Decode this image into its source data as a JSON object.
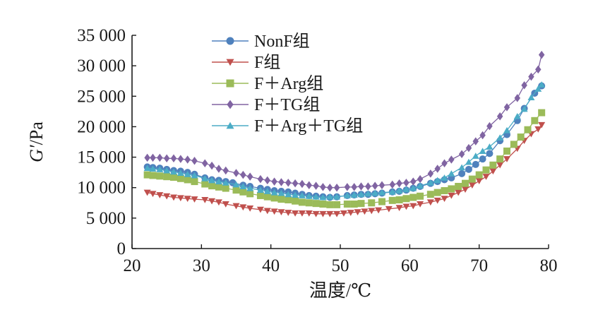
{
  "chart_data": {
    "type": "line",
    "xlabel": "温度/℃",
    "ylabel_italic": "G′",
    "ylabel_unit": "/Pa",
    "xlim": [
      20,
      80
    ],
    "ylim": [
      0,
      35000
    ],
    "x_ticks": [
      20,
      30,
      40,
      50,
      60,
      70,
      80
    ],
    "y_ticks": [
      0,
      5000,
      10000,
      15000,
      20000,
      25000,
      30000,
      35000
    ],
    "x_tick_labels": [
      "20",
      "30",
      "40",
      "50",
      "60",
      "70",
      "80"
    ],
    "y_tick_labels": [
      "0",
      "5 000",
      "10 000",
      "15 000",
      "20 000",
      "25 000",
      "30 000",
      "35 000"
    ],
    "grid": false,
    "legend_position": "top-center",
    "series": [
      {
        "name": "NonF组",
        "color": "#4f81bd",
        "marker": "circle",
        "points": [
          [
            22.2,
            13400
          ],
          [
            23,
            13300
          ],
          [
            24,
            13200
          ],
          [
            25,
            13000
          ],
          [
            26,
            12800
          ],
          [
            27,
            12700
          ],
          [
            28,
            12500
          ],
          [
            29,
            12200
          ],
          [
            30.5,
            11600
          ],
          [
            31.5,
            11300
          ],
          [
            32.5,
            11200
          ],
          [
            33.5,
            11000
          ],
          [
            34.5,
            10800
          ],
          [
            36,
            10400
          ],
          [
            37,
            10200
          ],
          [
            38.5,
            9900
          ],
          [
            39.5,
            9700
          ],
          [
            40.5,
            9500
          ],
          [
            41.5,
            9400
          ],
          [
            42.5,
            9300
          ],
          [
            43.5,
            9100
          ],
          [
            44.5,
            8900
          ],
          [
            45.5,
            8700
          ],
          [
            46.5,
            8600
          ],
          [
            47.5,
            8500
          ],
          [
            48.5,
            8400
          ],
          [
            49.5,
            8500
          ],
          [
            51,
            8700
          ],
          [
            52,
            8800
          ],
          [
            53,
            8900
          ],
          [
            54,
            8900
          ],
          [
            55,
            9000
          ],
          [
            56,
            9100
          ],
          [
            57.5,
            9300
          ],
          [
            58.5,
            9400
          ],
          [
            59.5,
            9600
          ],
          [
            60.5,
            9900
          ],
          [
            61.5,
            10200
          ],
          [
            63,
            10700
          ],
          [
            64,
            11000
          ],
          [
            65,
            11300
          ],
          [
            66,
            11600
          ],
          [
            67.5,
            12300
          ],
          [
            68.5,
            13000
          ],
          [
            69.5,
            13800
          ],
          [
            70.5,
            14700
          ],
          [
            71.5,
            15600
          ],
          [
            73,
            17700
          ],
          [
            74,
            18700
          ],
          [
            75.5,
            21000
          ],
          [
            76.5,
            23000
          ],
          [
            78,
            25500
          ],
          [
            79,
            26700
          ]
        ]
      },
      {
        "name": "F组",
        "color": "#c0504d",
        "marker": "triangle-down",
        "points": [
          [
            22.2,
            9200
          ],
          [
            23,
            9000
          ],
          [
            24,
            8800
          ],
          [
            25,
            8600
          ],
          [
            26,
            8400
          ],
          [
            27,
            8300
          ],
          [
            28,
            8200
          ],
          [
            29,
            8100
          ],
          [
            30.5,
            8000
          ],
          [
            31.5,
            7800
          ],
          [
            32.5,
            7600
          ],
          [
            33.5,
            7300
          ],
          [
            35,
            7000
          ],
          [
            36,
            6800
          ],
          [
            37,
            6600
          ],
          [
            38.5,
            6400
          ],
          [
            39.5,
            6200
          ],
          [
            40.5,
            6100
          ],
          [
            41.5,
            6000
          ],
          [
            42.5,
            5900
          ],
          [
            43.5,
            5800
          ],
          [
            44.5,
            5800
          ],
          [
            45.5,
            5800
          ],
          [
            46.5,
            5700
          ],
          [
            47.5,
            5700
          ],
          [
            48.5,
            5700
          ],
          [
            49.5,
            5700
          ],
          [
            50.5,
            5800
          ],
          [
            51.5,
            5900
          ],
          [
            52.5,
            6000
          ],
          [
            53.5,
            6100
          ],
          [
            54.5,
            6200
          ],
          [
            55.5,
            6300
          ],
          [
            57,
            6500
          ],
          [
            58.5,
            6700
          ],
          [
            59.5,
            6900
          ],
          [
            60.5,
            7000
          ],
          [
            61.5,
            7300
          ],
          [
            63,
            7600
          ],
          [
            64,
            7900
          ],
          [
            65,
            8200
          ],
          [
            66,
            8700
          ],
          [
            67,
            9200
          ],
          [
            68,
            9700
          ],
          [
            69,
            10400
          ],
          [
            70,
            11100
          ],
          [
            71,
            11800
          ],
          [
            72,
            12700
          ],
          [
            73,
            13700
          ],
          [
            74,
            14700
          ],
          [
            75.5,
            16400
          ],
          [
            76.5,
            17700
          ],
          [
            77.5,
            18800
          ],
          [
            78.5,
            19600
          ],
          [
            79,
            20300
          ]
        ]
      },
      {
        "name": "F＋Arg组",
        "color": "#9bbb59",
        "marker": "square",
        "points": [
          [
            22.2,
            12100
          ],
          [
            23,
            12000
          ],
          [
            24,
            11900
          ],
          [
            25,
            11800
          ],
          [
            26,
            11700
          ],
          [
            27,
            11500
          ],
          [
            28,
            11300
          ],
          [
            29,
            11000
          ],
          [
            30.5,
            10600
          ],
          [
            31.5,
            10300
          ],
          [
            32.5,
            10100
          ],
          [
            33.5,
            9900
          ],
          [
            35,
            9600
          ],
          [
            36,
            9300
          ],
          [
            37,
            9000
          ],
          [
            38.5,
            8700
          ],
          [
            39.5,
            8500
          ],
          [
            40.5,
            8300
          ],
          [
            41.5,
            8100
          ],
          [
            42.5,
            8000
          ],
          [
            43.5,
            7800
          ],
          [
            44.5,
            7600
          ],
          [
            45.5,
            7500
          ],
          [
            46.5,
            7400
          ],
          [
            47.5,
            7300
          ],
          [
            48.5,
            7200
          ],
          [
            49.5,
            7200
          ],
          [
            51,
            7300
          ],
          [
            52,
            7300
          ],
          [
            53,
            7400
          ],
          [
            54.5,
            7500
          ],
          [
            56,
            7700
          ],
          [
            57.5,
            7900
          ],
          [
            58.5,
            8000
          ],
          [
            59.5,
            8200
          ],
          [
            60.5,
            8400
          ],
          [
            61.5,
            8600
          ],
          [
            63,
            8900
          ],
          [
            64,
            9200
          ],
          [
            65,
            9500
          ],
          [
            66,
            9800
          ],
          [
            67,
            10200
          ],
          [
            68,
            10700
          ],
          [
            69,
            11400
          ],
          [
            70,
            12100
          ],
          [
            71,
            12900
          ],
          [
            72,
            13700
          ],
          [
            73,
            14700
          ],
          [
            74,
            16000
          ],
          [
            75,
            17100
          ],
          [
            76,
            18300
          ],
          [
            77,
            19500
          ],
          [
            78,
            21000
          ],
          [
            79,
            22300
          ]
        ]
      },
      {
        "name": "F＋TG组",
        "color": "#8064a2",
        "marker": "diamond",
        "points": [
          [
            22.2,
            14900
          ],
          [
            23,
            14900
          ],
          [
            24,
            14900
          ],
          [
            25,
            14800
          ],
          [
            26,
            14800
          ],
          [
            27,
            14700
          ],
          [
            28,
            14600
          ],
          [
            29,
            14400
          ],
          [
            30.5,
            14000
          ],
          [
            31.5,
            13600
          ],
          [
            32.5,
            13100
          ],
          [
            33.5,
            12800
          ],
          [
            35,
            12400
          ],
          [
            36,
            12100
          ],
          [
            37,
            11800
          ],
          [
            38.5,
            11400
          ],
          [
            39.5,
            11200
          ],
          [
            40.5,
            11000
          ],
          [
            41.5,
            10900
          ],
          [
            42.5,
            10800
          ],
          [
            43.5,
            10700
          ],
          [
            44.5,
            10600
          ],
          [
            45.5,
            10400
          ],
          [
            46.5,
            10300
          ],
          [
            47.5,
            10100
          ],
          [
            48.5,
            10000
          ],
          [
            49.5,
            10000
          ],
          [
            51,
            10100
          ],
          [
            52,
            10100
          ],
          [
            53,
            10200
          ],
          [
            54,
            10200
          ],
          [
            55,
            10300
          ],
          [
            56,
            10400
          ],
          [
            57.5,
            10500
          ],
          [
            58.5,
            10700
          ],
          [
            59.5,
            10800
          ],
          [
            60.5,
            11000
          ],
          [
            61.5,
            11400
          ],
          [
            63,
            12300
          ],
          [
            64,
            13100
          ],
          [
            65,
            14000
          ],
          [
            66,
            14600
          ],
          [
            67.5,
            15500
          ],
          [
            68.5,
            16500
          ],
          [
            69.5,
            17600
          ],
          [
            70.5,
            18600
          ],
          [
            71.5,
            20100
          ],
          [
            73,
            21700
          ],
          [
            74,
            23200
          ],
          [
            75.5,
            24700
          ],
          [
            76.5,
            26800
          ],
          [
            77.5,
            28200
          ],
          [
            78.5,
            29400
          ],
          [
            79,
            31800
          ]
        ]
      },
      {
        "name": "F＋Arg＋TG组",
        "color": "#4bacc6",
        "marker": "triangle-up",
        "points": [
          [
            22.2,
            13200
          ],
          [
            23,
            13100
          ],
          [
            24,
            13000
          ],
          [
            25,
            12800
          ],
          [
            26,
            12600
          ],
          [
            27,
            12400
          ],
          [
            28,
            12200
          ],
          [
            29,
            12000
          ],
          [
            30.5,
            11500
          ],
          [
            31.5,
            11200
          ],
          [
            32.5,
            11000
          ],
          [
            33.5,
            10800
          ],
          [
            35,
            10500
          ],
          [
            36,
            10200
          ],
          [
            37,
            9900
          ],
          [
            38.5,
            9600
          ],
          [
            39.5,
            9400
          ],
          [
            40.5,
            9200
          ],
          [
            41.5,
            9100
          ],
          [
            42.5,
            8900
          ],
          [
            43.5,
            8800
          ],
          [
            44.5,
            8700
          ],
          [
            45.5,
            8600
          ],
          [
            46.5,
            8500
          ],
          [
            47.5,
            8400
          ],
          [
            48.5,
            8500
          ],
          [
            49.5,
            8500
          ],
          [
            51,
            8700
          ],
          [
            52,
            8800
          ],
          [
            53,
            8900
          ],
          [
            54,
            9000
          ],
          [
            55,
            9100
          ],
          [
            56,
            9200
          ],
          [
            57.5,
            9300
          ],
          [
            58.5,
            9500
          ],
          [
            59.5,
            9700
          ],
          [
            60.5,
            9900
          ],
          [
            61.5,
            10300
          ],
          [
            63,
            10800
          ],
          [
            64,
            11200
          ],
          [
            65,
            11600
          ],
          [
            66,
            12300
          ],
          [
            67.5,
            13300
          ],
          [
            68.5,
            14200
          ],
          [
            69.5,
            15200
          ],
          [
            70.5,
            16000
          ],
          [
            71.5,
            16700
          ],
          [
            73,
            18200
          ],
          [
            74,
            19400
          ],
          [
            75.5,
            21700
          ],
          [
            76.5,
            22900
          ],
          [
            77.5,
            24800
          ],
          [
            78.5,
            26200
          ],
          [
            79,
            26900
          ]
        ]
      }
    ]
  }
}
